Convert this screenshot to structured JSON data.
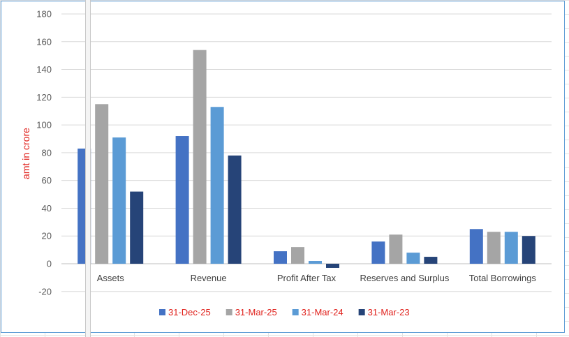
{
  "chart_data": {
    "type": "bar",
    "title": "",
    "xlabel": "",
    "ylabel": "amt in crore",
    "ylim": [
      -20,
      180
    ],
    "yticks": [
      -20,
      0,
      20,
      40,
      60,
      80,
      100,
      120,
      140,
      160,
      180
    ],
    "grid": true,
    "legend_position": "bottom",
    "categories": [
      "Assets",
      "Revenue",
      "Profit After Tax",
      "Reserves and Surplus",
      "Total Borrowings"
    ],
    "series": [
      {
        "name": "31-Dec-25",
        "color": "#4472c4",
        "values": [
          83,
          92,
          9,
          16,
          25
        ]
      },
      {
        "name": "31-Mar-25",
        "color": "#a5a5a5",
        "values": [
          115,
          154,
          12,
          21,
          23
        ]
      },
      {
        "name": "31-Mar-24",
        "color": "#5b9bd5",
        "values": [
          91,
          113,
          2,
          8,
          23
        ]
      },
      {
        "name": "31-Mar-23",
        "color": "#264478",
        "values": [
          52,
          78,
          -3,
          5,
          20
        ]
      }
    ]
  }
}
